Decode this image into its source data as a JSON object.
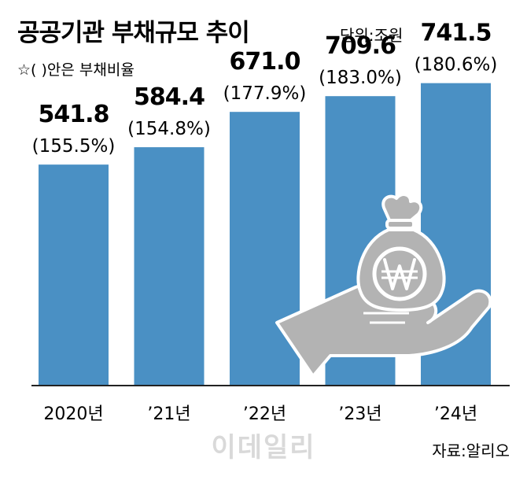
{
  "title": "공공기관 부채규모 추이",
  "unit_label": "단위:조원",
  "note": "☆(  )안은 부채비율",
  "source": "자료:알리오",
  "watermark": "이데일리",
  "colors": {
    "bar": "#4a90c4",
    "axis": "#222222",
    "icon": "#b3b3b3",
    "icon_stroke": "#ffffff"
  },
  "icons": [
    "money-bag-icon",
    "won-sign-icon",
    "hand-icon"
  ],
  "chart_data": {
    "type": "bar",
    "categories": [
      "2020년",
      "’21년",
      "’22년",
      "’23년",
      "’24년"
    ],
    "values": [
      541.8,
      584.4,
      671.0,
      709.6,
      741.5
    ],
    "value_labels": [
      "541.8",
      "584.4",
      "671.0",
      "709.6",
      "741.5"
    ],
    "ratio_labels": [
      "(155.5%)",
      "(154.8%)",
      "(177.9%)",
      "(183.0%)",
      "(180.6%)"
    ],
    "ylim": [
      0,
      845
    ],
    "grid": false,
    "xlabel": "",
    "ylabel": ""
  }
}
